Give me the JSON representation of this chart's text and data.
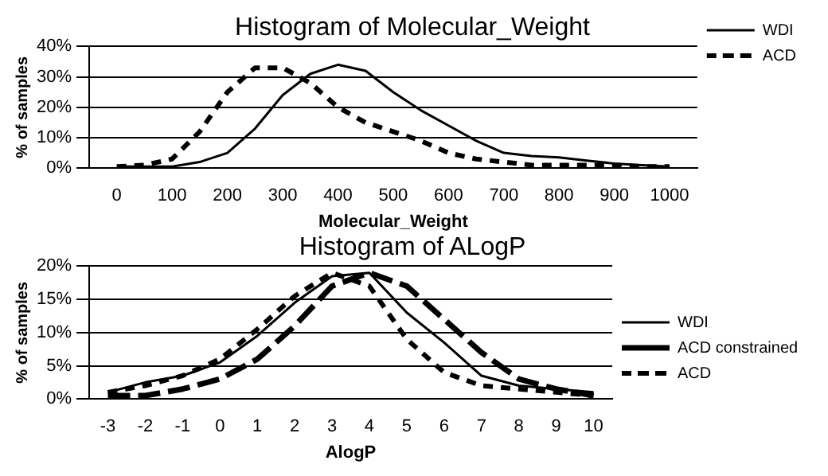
{
  "chart_data": [
    {
      "type": "line",
      "title": "Histogram of Molecular_Weight",
      "xlabel": "Molecular_Weight",
      "ylabel": "% of samples",
      "x": [
        0,
        50,
        100,
        150,
        200,
        250,
        300,
        350,
        400,
        450,
        500,
        550,
        600,
        650,
        700,
        750,
        800,
        850,
        900,
        950,
        1000
      ],
      "series": [
        {
          "name": "WDI",
          "color": "#000000",
          "line_style": "solid",
          "values": [
            0.5,
            0.5,
            0.5,
            2,
            5,
            13,
            24,
            31,
            34,
            32,
            25,
            19,
            14,
            9,
            5,
            4,
            3.5,
            2.5,
            1.5,
            1,
            0.5
          ]
        },
        {
          "name": "ACD",
          "color": "#000000",
          "line_style": "dashed",
          "values": [
            0.5,
            1,
            3,
            12,
            25,
            33,
            33,
            28,
            20,
            15,
            12,
            9,
            5,
            3,
            2,
            1,
            1,
            1,
            1,
            0.5,
            0.5
          ]
        }
      ],
      "xlim": [
        -50,
        1050
      ],
      "xticks": [
        0,
        100,
        200,
        300,
        400,
        500,
        600,
        700,
        800,
        900,
        1000
      ],
      "ylim": [
        0,
        40
      ],
      "yticks": [
        {
          "value": 0,
          "label": "0%"
        },
        {
          "value": 10,
          "label": "10%"
        },
        {
          "value": 20,
          "label": "20%"
        },
        {
          "value": 30,
          "label": "30%"
        },
        {
          "value": 40,
          "label": "40%"
        }
      ],
      "grid": "y",
      "legend": "top right",
      "marker": "none"
    },
    {
      "type": "line",
      "title": "Histogram of ALogP",
      "xlabel": "AlogP",
      "ylabel": "% of samples",
      "x": [
        -3,
        -2,
        -1,
        0,
        1,
        2,
        3,
        4,
        5,
        6,
        7,
        8,
        9,
        10
      ],
      "series": [
        {
          "name": "WDI",
          "color": "#000000",
          "line_style": "solid",
          "values": [
            1,
            2.5,
            3.5,
            5.5,
            9.5,
            14.5,
            18.5,
            19,
            13,
            8.5,
            3.5,
            2,
            1.5,
            1
          ]
        },
        {
          "name": "ACD constrained",
          "color": "#000000",
          "line_style": "longdash",
          "values": [
            0.5,
            0.5,
            1.5,
            3,
            6,
            11,
            17,
            19,
            17,
            12,
            7,
            3,
            1.5,
            0.5
          ]
        },
        {
          "name": "ACD",
          "color": "#000000",
          "line_style": "dashed",
          "values": [
            1,
            2,
            3.5,
            6,
            10.5,
            15.5,
            19,
            17,
            9,
            4,
            2,
            1.5,
            1,
            0.5
          ]
        }
      ],
      "xlim": [
        -3.5,
        10.5
      ],
      "xticks": [
        -3,
        -2,
        -1,
        0,
        1,
        2,
        3,
        4,
        5,
        6,
        7,
        8,
        9,
        10
      ],
      "ylim": [
        0,
        20
      ],
      "yticks": [
        {
          "value": 0,
          "label": "0%"
        },
        {
          "value": 5,
          "label": "5%"
        },
        {
          "value": 10,
          "label": "10%"
        },
        {
          "value": 15,
          "label": "15%"
        },
        {
          "value": 20,
          "label": "20%"
        }
      ],
      "grid": "y",
      "legend": "right",
      "marker": "none"
    }
  ]
}
